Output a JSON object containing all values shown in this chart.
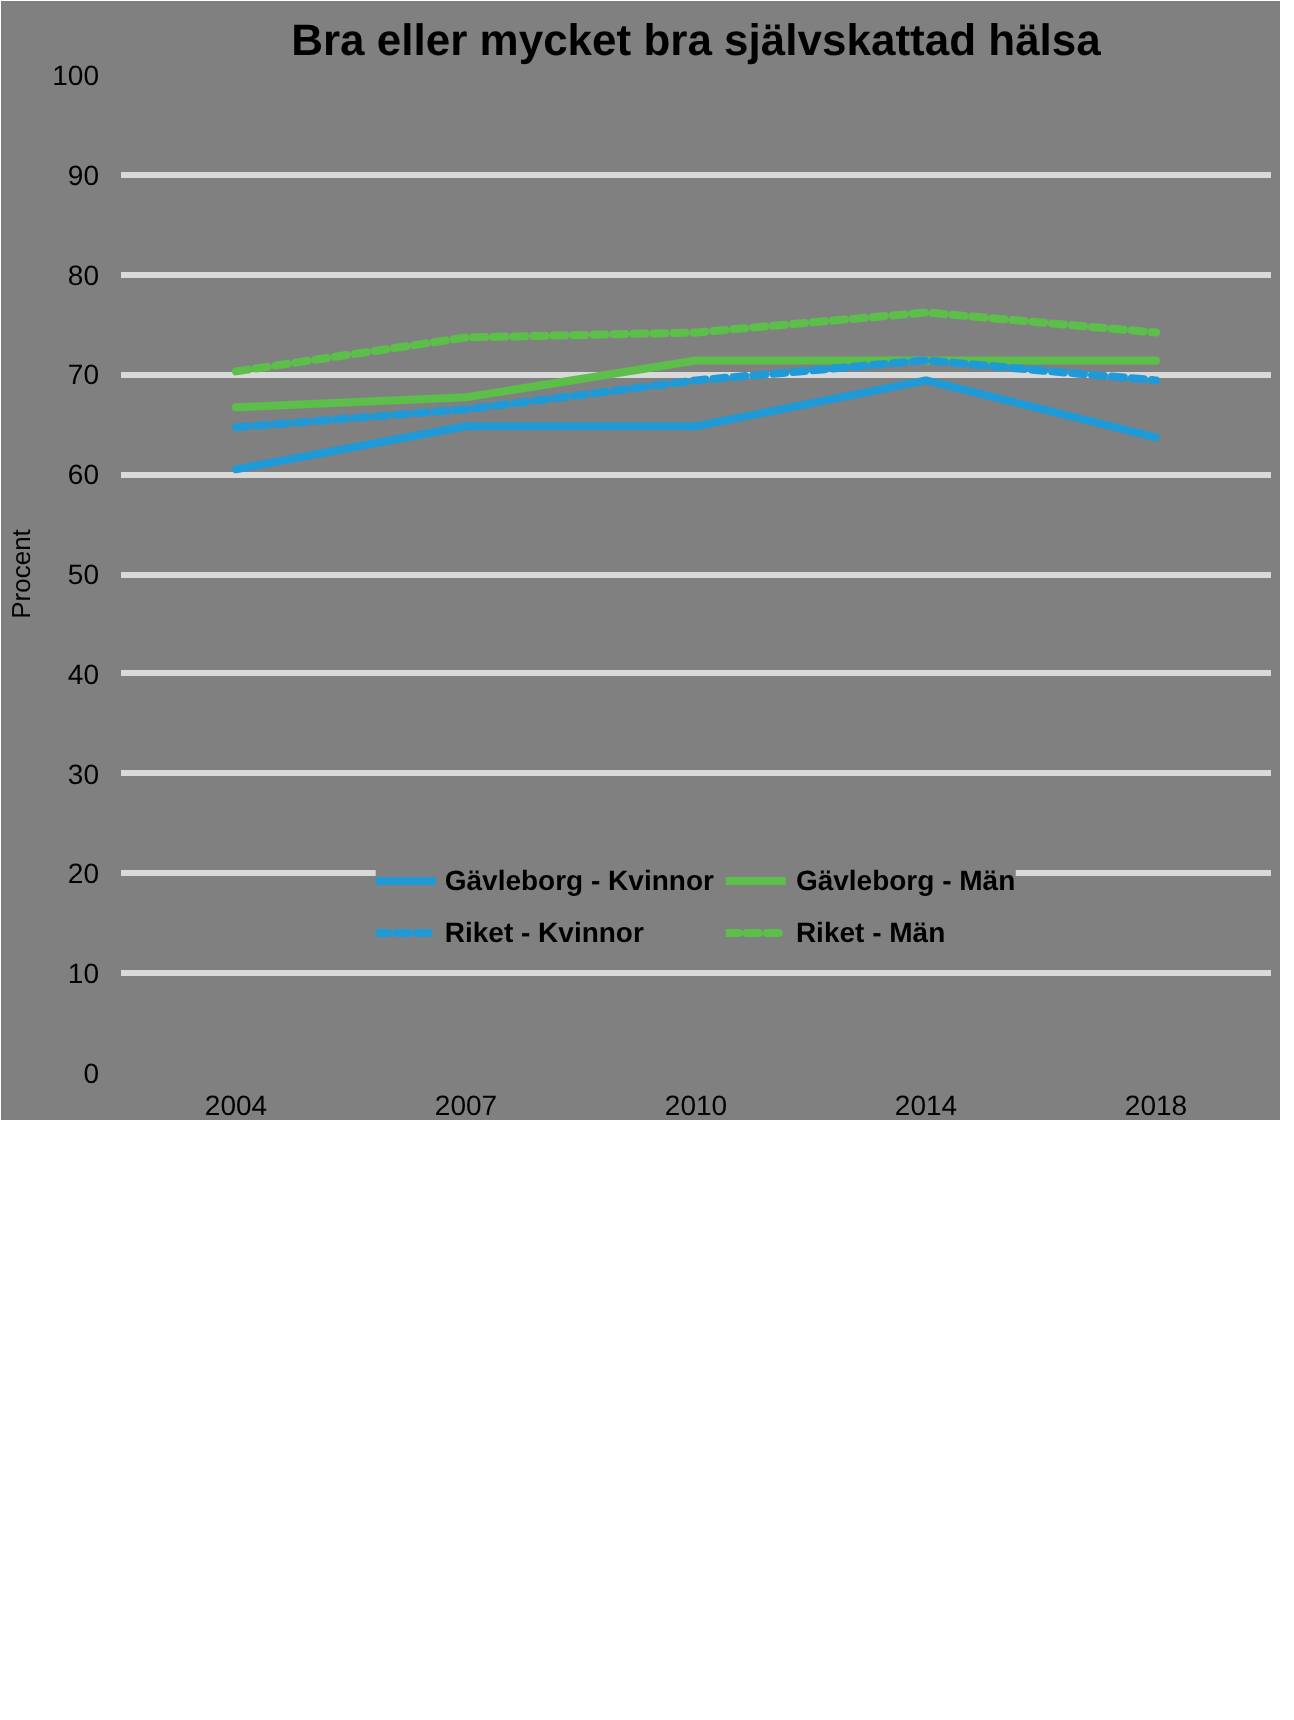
{
  "chart_data": {
    "type": "line",
    "title": "Bra eller mycket bra självskattad hälsa",
    "ylabel": "Procent",
    "categories": [
      "2004",
      "2007",
      "2010",
      "2014",
      "2018"
    ],
    "series": [
      {
        "name": "Gävleborg - Kvinnor",
        "color": "#1f9ad6",
        "line_style": "solid",
        "values": [
          60.5,
          64.8,
          64.8,
          69.4,
          63.7
        ]
      },
      {
        "name": "Gävleborg - Män",
        "color": "#5cbf4a",
        "line_style": "solid",
        "values": [
          66.7,
          67.7,
          71.4,
          71.4,
          71.4
        ]
      },
      {
        "name": "Riket - Kvinnor",
        "color": "#1f9ad6",
        "line_style": "dashed",
        "values": [
          64.7,
          66.5,
          69.4,
          71.4,
          69.4
        ]
      },
      {
        "name": "Riket - Män",
        "color": "#5cbf4a",
        "line_style": "dashed",
        "values": [
          70.3,
          73.7,
          74.2,
          76.2,
          74.2
        ]
      }
    ],
    "ylim": [
      0,
      100
    ],
    "yticks": [
      0,
      10,
      20,
      30,
      40,
      50,
      60,
      70,
      80,
      90,
      100
    ],
    "grid": "y",
    "legend": "bottom",
    "marker": "none"
  }
}
